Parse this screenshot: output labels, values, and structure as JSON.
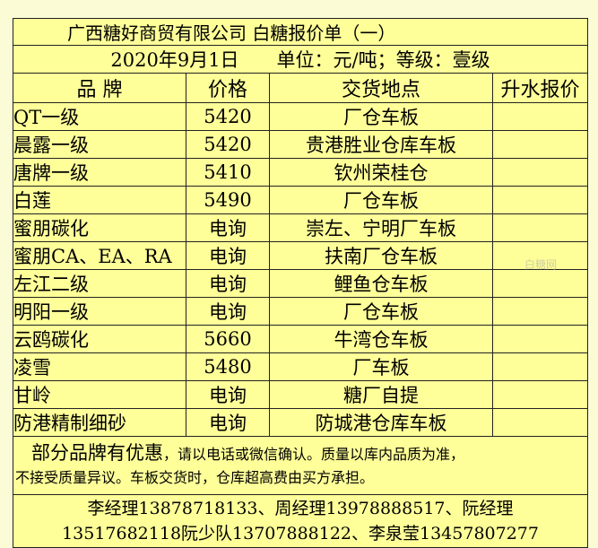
{
  "title": "广西糖好商贸有限公司 白糖报价单（一）",
  "subtitle": "2020年9月1日　　单位：元/吨；等级：壹级",
  "headers": [
    "品 牌",
    "价格",
    "交货地点",
    "升水报价"
  ],
  "rows": [
    [
      "QT一级",
      "5420",
      "厂仓车板",
      ""
    ],
    [
      "晨露一级",
      "5420",
      "贵港胜业仓库车板",
      ""
    ],
    [
      "唐牌一级",
      "5410",
      "钦州荣桂仓",
      ""
    ],
    [
      "白莲",
      "5490",
      "厂仓车板",
      ""
    ],
    [
      "蜜朋碳化",
      "电询",
      "崇左、宁明厂车板",
      ""
    ],
    [
      "蜜朋CA、EA、RA",
      "电询",
      "扶南厂仓车板",
      ""
    ],
    [
      "左江二级",
      "电询",
      "鲤鱼仓车板",
      ""
    ],
    [
      "明阳一级",
      "电询",
      "厂仓车板",
      ""
    ],
    [
      "云鸥碳化",
      "5660",
      "牛湾仓车板",
      ""
    ],
    [
      "凌雪",
      "5480",
      "厂车板",
      ""
    ],
    [
      "甘岭",
      "电询",
      "糖厂自提",
      ""
    ],
    [
      "防港精制细砂",
      "电询",
      "防城港仓库车板",
      ""
    ]
  ],
  "notes": {
    "lead": "部分品牌有优惠",
    "line1": "，请以电话或微信确认。质量以库内品质为准，",
    "line2": "不接受质量异议。车板交货时，仓库超高费由买方承担。"
  },
  "contacts": {
    "line1": "李经理13878718133、周经理13978888517、阮经理",
    "line2": "13517682118阮少队13707888122、李泉莹13457807277"
  },
  "watermark": "白糖网"
}
